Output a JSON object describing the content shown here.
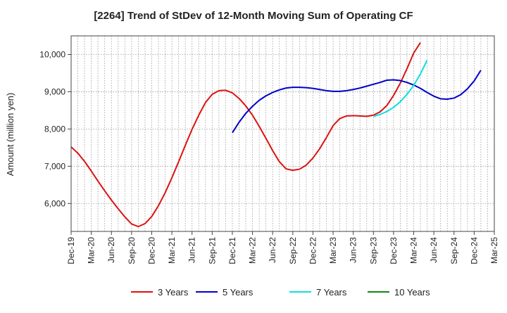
{
  "chart_data": {
    "type": "line",
    "title": "[2264]  Trend of StDev of 12-Month Moving Sum of Operating CF",
    "ylabel": "Amount (million yen)",
    "xlabel": "",
    "x_ticks": [
      "Dec-19",
      "Mar-20",
      "Jun-20",
      "Sep-20",
      "Dec-20",
      "Mar-21",
      "Jun-21",
      "Sep-21",
      "Dec-21",
      "Mar-22",
      "Jun-22",
      "Sep-22",
      "Dec-22",
      "Mar-23",
      "Jun-23",
      "Sep-23",
      "Dec-23",
      "Mar-24",
      "Jun-24",
      "Sep-24",
      "Dec-24",
      "Mar-25"
    ],
    "y_ticks": [
      "6,000",
      "7,000",
      "8,000",
      "9,000",
      "10,000"
    ],
    "y_tick_values": [
      6000,
      7000,
      8000,
      9000,
      10000
    ],
    "ylim": [
      5250,
      10500
    ],
    "grid": true,
    "legend_position": "bottom",
    "series": [
      {
        "name": "3 Years",
        "color": "#dd1111",
        "start_index": 0,
        "values": [
          7520,
          7350,
          7130,
          6870,
          6600,
          6340,
          6090,
          5860,
          5640,
          5450,
          5380,
          5460,
          5650,
          5940,
          6290,
          6690,
          7120,
          7560,
          7990,
          8370,
          8710,
          8930,
          9030,
          9040,
          8970,
          8820,
          8620,
          8370,
          8070,
          7750,
          7420,
          7120,
          6930,
          6890,
          6920,
          7030,
          7220,
          7470,
          7770,
          8090,
          8280,
          8350,
          8360,
          8350,
          8340,
          8370,
          8460,
          8630,
          8900,
          9230,
          9620,
          10040,
          10320
        ]
      },
      {
        "name": "5 Years",
        "color": "#0000cc",
        "start_index": 24,
        "values": [
          7900,
          8180,
          8420,
          8610,
          8770,
          8890,
          8980,
          9050,
          9100,
          9120,
          9120,
          9110,
          9090,
          9060,
          9030,
          9010,
          9010,
          9030,
          9060,
          9100,
          9150,
          9200,
          9250,
          9310,
          9320,
          9300,
          9250,
          9180,
          9090,
          8980,
          8880,
          8810,
          8800,
          8830,
          8920,
          9080,
          9290,
          9580
        ]
      },
      {
        "name": "7 Years",
        "color": "#11dddd",
        "start_index": 45,
        "values": [
          8340,
          8390,
          8470,
          8580,
          8730,
          8930,
          9170,
          9480,
          9850
        ]
      },
      {
        "name": "10 Years",
        "color": "#118811",
        "start_index": 0,
        "values": []
      }
    ]
  }
}
